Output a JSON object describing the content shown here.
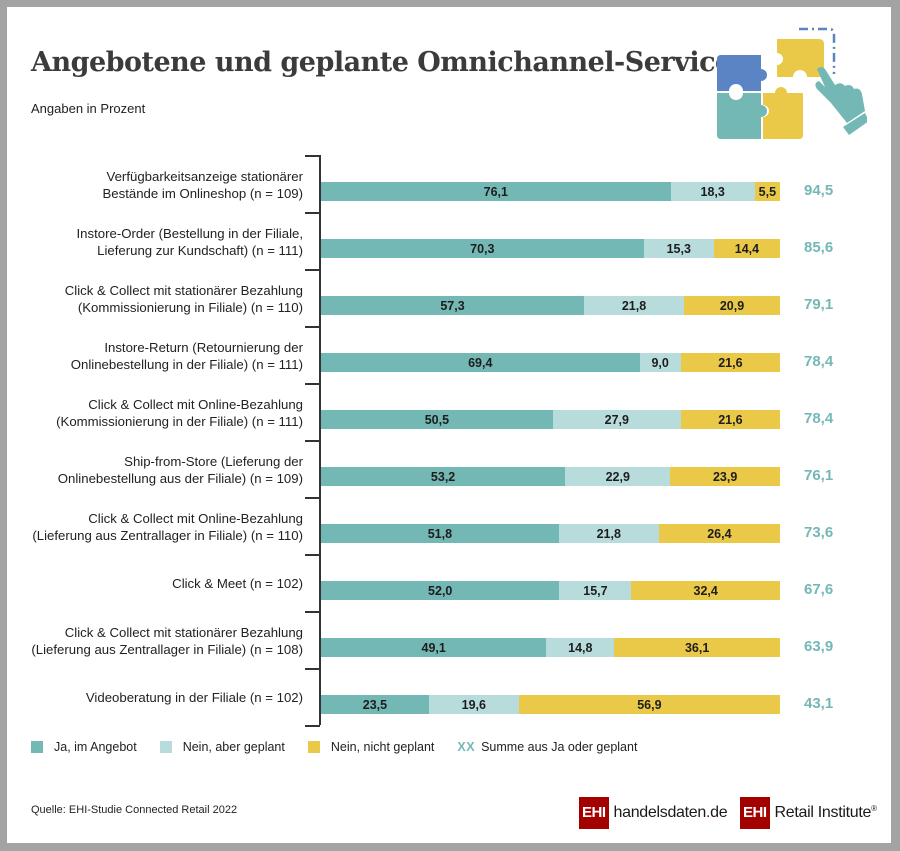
{
  "header": {
    "title": "Angebotene und geplante Omnichannel-Services",
    "subtitle": "Angaben in Prozent",
    "illustration": "puzzle-hand-icon"
  },
  "colors": {
    "ja": "#74b8b5",
    "geplant": "#b8dcdc",
    "nicht": "#e9c947",
    "sum_text": "#74b8b5",
    "brand_red": "#a30000"
  },
  "chart_data": {
    "type": "bar",
    "orientation": "horizontal",
    "stacked": true,
    "title": "Angebotene und geplante Omnichannel-Services",
    "subtitle": "Angaben in Prozent",
    "xlabel": "",
    "ylabel": "",
    "xlim": [
      0,
      100
    ],
    "grid": false,
    "legend_position": "bottom",
    "categories": [
      {
        "line1": "Verfügbarkeitsanzeige stationärer",
        "line2": "Bestände im Onlineshop (n = 109)"
      },
      {
        "line1": "Instore-Order (Bestellung in der Filiale,",
        "line2": "Lieferung zur Kundschaft) (n = 111)"
      },
      {
        "line1": "Click & Collect mit stationärer Bezahlung",
        "line2": "(Kommissionierung in Filiale) (n = 110)"
      },
      {
        "line1": "Instore-Return (Retournierung der",
        "line2": "Onlinebestellung in der Filiale) (n = 111)"
      },
      {
        "line1": "Click & Collect mit Online-Bezahlung",
        "line2": "(Kommissionierung in der Filiale) (n = 111)"
      },
      {
        "line1": "Ship-from-Store (Lieferung der",
        "line2": "Onlinebestellung aus der Filiale) (n = 109)"
      },
      {
        "line1": "Click & Collect mit Online-Bezahlung",
        "line2": "(Lieferung aus Zentrallager in Filiale) (n = 110)"
      },
      {
        "line1": "Click & Meet (n = 102)",
        "line2": ""
      },
      {
        "line1": "Click & Collect mit stationärer Bezahlung",
        "line2": "(Lieferung aus Zentrallager in Filiale) (n = 108)"
      },
      {
        "line1": "Videoberatung in der Filiale (n = 102)",
        "line2": ""
      }
    ],
    "series": [
      {
        "name": "Ja, im Angebot",
        "key": "ja",
        "values": [
          76.1,
          70.3,
          57.3,
          69.4,
          50.5,
          53.2,
          51.8,
          52.0,
          49.1,
          23.5
        ],
        "labels": [
          "76,1",
          "70,3",
          "57,3",
          "69,4",
          "50,5",
          "53,2",
          "51,8",
          "52,0",
          "49,1",
          "23,5"
        ]
      },
      {
        "name": "Nein, aber geplant",
        "key": "geplant",
        "values": [
          18.3,
          15.3,
          21.8,
          9.0,
          27.9,
          22.9,
          21.8,
          15.7,
          14.8,
          19.6
        ],
        "labels": [
          "18,3",
          "15,3",
          "21,8",
          "9,0",
          "27,9",
          "22,9",
          "21,8",
          "15,7",
          "14,8",
          "19,6"
        ]
      },
      {
        "name": "Nein, nicht geplant",
        "key": "nicht",
        "values": [
          5.5,
          14.4,
          20.9,
          21.6,
          21.6,
          23.9,
          26.4,
          32.4,
          36.1,
          56.9
        ],
        "labels": [
          "5,5",
          "14,4",
          "20,9",
          "21,6",
          "21,6",
          "23,9",
          "26,4",
          "32,4",
          "36,1",
          "56,9"
        ]
      }
    ],
    "sum_ja_or_geplant": {
      "values": [
        94.5,
        85.6,
        79.1,
        78.4,
        78.4,
        76.1,
        73.6,
        67.6,
        63.9,
        43.1
      ],
      "labels": [
        "94,5",
        "85,6",
        "79,1",
        "78,4",
        "78,4",
        "76,1",
        "73,6",
        "67,6",
        "63,9",
        "43,1"
      ]
    }
  },
  "legend": {
    "items": [
      {
        "label": "Ja, im Angebot",
        "key": "ja"
      },
      {
        "label": "Nein, aber geplant",
        "key": "geplant"
      },
      {
        "label": "Nein, nicht geplant",
        "key": "nicht"
      }
    ],
    "sum_marker": "XX",
    "sum_label": "Summe aus Ja oder geplant"
  },
  "footer": {
    "source": "Quelle: EHI-Studie Connected Retail 2022",
    "logo1_box": "EHI",
    "logo1_text_a": "handelsdaten",
    "logo1_text_dot": ".",
    "logo1_text_b": "de",
    "logo2_box": "EHI",
    "logo2_text": "Retail Institute",
    "logo2_reg": "®"
  }
}
